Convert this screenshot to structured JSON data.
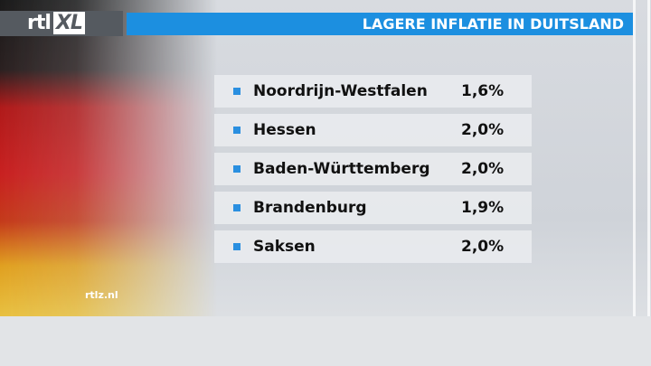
{
  "logo": {
    "primary": "rtl",
    "secondary": "XL"
  },
  "header": {
    "title": "LAGERE INFLATIE IN DUITSLAND"
  },
  "table": {
    "rows": [
      [
        "Noordrijn-Westfalen",
        "1,6%"
      ],
      [
        "Hessen",
        "2,0%"
      ],
      [
        "Baden-Württemberg",
        "2,0%"
      ],
      [
        "Brandenburg",
        "1,9%"
      ],
      [
        "Saksen",
        "2,0%"
      ]
    ]
  },
  "watermark": "rtlz.nl"
}
